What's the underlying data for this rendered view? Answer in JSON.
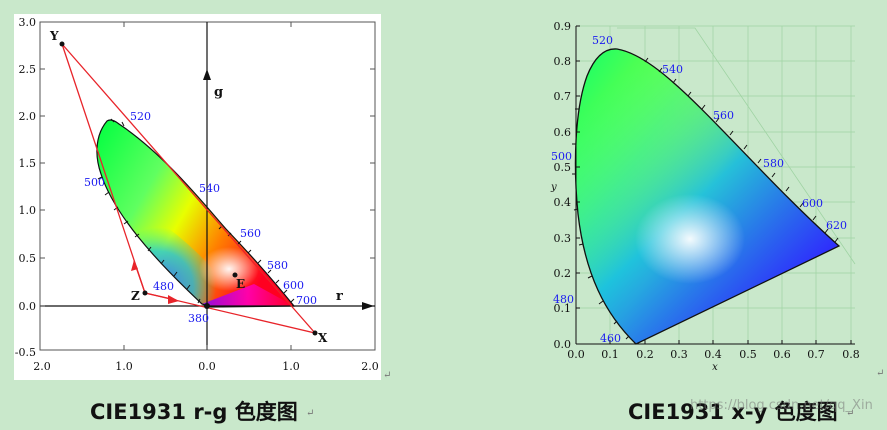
{
  "left_chart": {
    "x_ticks": [
      "2.0",
      "1.0",
      "0.0",
      "1.0",
      "2.0"
    ],
    "y_ticks": [
      "3.0",
      "2.5",
      "2.0",
      "1.5",
      "1.0",
      "0.5",
      "0.0",
      "-0.5"
    ],
    "axis_r": "r",
    "axis_g": "g",
    "points": {
      "X": "X",
      "Y": "Y",
      "Z": "Z",
      "E": "E"
    },
    "wavelengths": [
      "520",
      "500",
      "540",
      "560",
      "580",
      "600",
      "480",
      "700",
      "380"
    ]
  },
  "right_chart": {
    "x_ticks": [
      "0.0",
      "0.1",
      "0.2",
      "0.3",
      "0.4",
      "0.5",
      "0.6",
      "0.7",
      "0.8"
    ],
    "y_ticks": [
      "0.9",
      "0.8",
      "0.7",
      "0.6",
      "0.5",
      "0.4",
      "0.3",
      "0.2",
      "0.1",
      "0.0"
    ],
    "xlabel": "x",
    "ylabel": "y",
    "wavelengths": [
      "520",
      "540",
      "560",
      "580",
      "600",
      "620",
      "500",
      "480",
      "460"
    ]
  },
  "captions": {
    "left": "CIE1931 r-g 色度图",
    "right": "CIE1931 x-y 色度图",
    "watermark": "https://blog.csdn.net/qq_Xin"
  },
  "chart_data": [
    {
      "type": "scatter",
      "title": "CIE1931 r-g 色度图",
      "xlabel": "r",
      "ylabel": "g",
      "xlim": [
        -2.0,
        2.0
      ],
      "ylim": [
        -0.5,
        3.0
      ],
      "grid": false,
      "points": [
        {
          "label": "X",
          "x": 1.27,
          "y": -0.28
        },
        {
          "label": "Y",
          "x": -1.74,
          "y": 2.77
        },
        {
          "label": "Z",
          "x": -0.74,
          "y": 0.14
        },
        {
          "label": "E",
          "x": 0.33,
          "y": 0.33
        }
      ]
    },
    {
      "type": "line",
      "title": "CIE1931 x-y 色度图",
      "xlabel": "x",
      "ylabel": "y",
      "xlim": [
        0.0,
        0.8
      ],
      "ylim": [
        0.0,
        0.9
      ],
      "grid": true,
      "spectral_locus": [
        {
          "nm": 460,
          "x": 0.144,
          "y": 0.03
        },
        {
          "nm": 480,
          "x": 0.091,
          "y": 0.133
        },
        {
          "nm": 500,
          "x": 0.008,
          "y": 0.538
        },
        {
          "nm": 520,
          "x": 0.074,
          "y": 0.834
        },
        {
          "nm": 540,
          "x": 0.23,
          "y": 0.754
        },
        {
          "nm": 560,
          "x": 0.373,
          "y": 0.624
        },
        {
          "nm": 580,
          "x": 0.512,
          "y": 0.487
        },
        {
          "nm": 600,
          "x": 0.627,
          "y": 0.373
        },
        {
          "nm": 620,
          "x": 0.691,
          "y": 0.308
        }
      ]
    }
  ]
}
